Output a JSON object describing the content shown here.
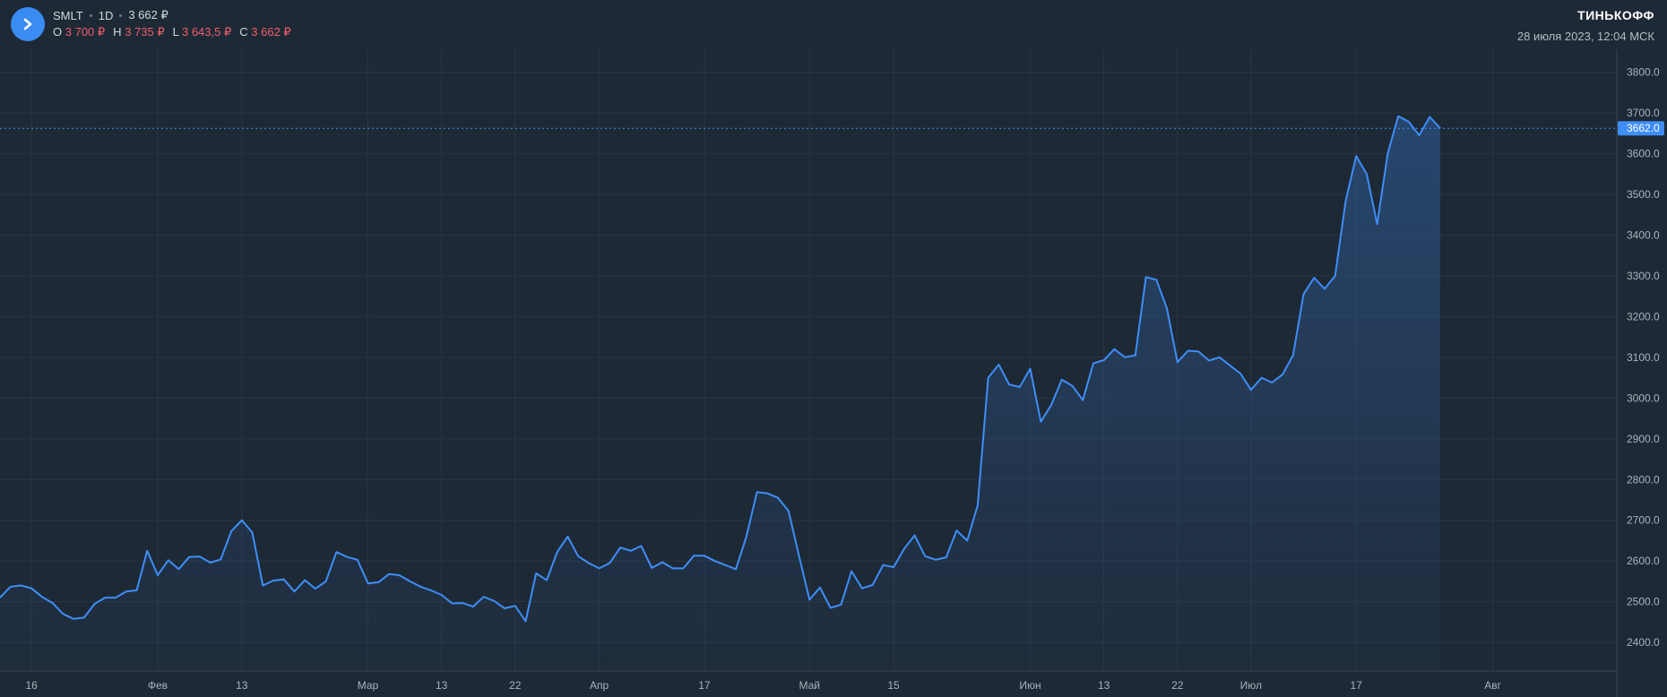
{
  "header": {
    "ticker": "SMLT",
    "interval": "1D",
    "last_price": "3 662 ₽",
    "ohlc": [
      {
        "label": "O",
        "value": "3 700 ₽"
      },
      {
        "label": "H",
        "value": "3 735 ₽"
      },
      {
        "label": "L",
        "value": "3 643,5 ₽"
      },
      {
        "label": "C",
        "value": "3 662 ₽"
      }
    ]
  },
  "brand": {
    "name": "ТИНЬКОФФ",
    "date": "28 июля 2023, 12:04 МСК"
  },
  "colors": {
    "background": "#1e2936",
    "line": "#3e8ef7",
    "negative": "#ef5e6b",
    "price_tag": "#3e8ef7"
  },
  "chart_data": {
    "type": "area",
    "y_ticks": [
      "3800.0",
      "3700.0",
      "3600.0",
      "3500.0",
      "3400.0",
      "3300.0",
      "3200.0",
      "3100.0",
      "3000.0",
      "2900.0",
      "2800.0",
      "2700.0",
      "2600.0",
      "2500.0",
      "2400.0"
    ],
    "ylim": [
      2330,
      3845
    ],
    "x_ticks": [
      {
        "label": "16",
        "idx": 3
      },
      {
        "label": "Фев",
        "idx": 15
      },
      {
        "label": "13",
        "idx": 23
      },
      {
        "label": "Мар",
        "idx": 35
      },
      {
        "label": "13",
        "idx": 42
      },
      {
        "label": "22",
        "idx": 49
      },
      {
        "label": "Апр",
        "idx": 57
      },
      {
        "label": "17",
        "idx": 67
      },
      {
        "label": "Май",
        "idx": 77
      },
      {
        "label": "15",
        "idx": 85
      },
      {
        "label": "Июн",
        "idx": 98
      },
      {
        "label": "13",
        "idx": 105
      },
      {
        "label": "22",
        "idx": 112
      },
      {
        "label": "Июл",
        "idx": 119
      },
      {
        "label": "17",
        "idx": 129
      },
      {
        "label": "Авг",
        "idx": 142
      }
    ],
    "grid": true,
    "current_price_label": "3662.0",
    "current_price": 3662,
    "series": [
      {
        "values": [
          2510,
          2537,
          2540,
          2533,
          2512,
          2497,
          2470,
          2458,
          2461,
          2495,
          2510,
          2510,
          2525,
          2528,
          2625,
          2565,
          2602,
          2580,
          2610,
          2611,
          2596,
          2604,
          2673,
          2700,
          2670,
          2540,
          2552,
          2555,
          2525,
          2553,
          2532,
          2550,
          2622,
          2610,
          2603,
          2545,
          2548,
          2568,
          2565,
          2550,
          2537,
          2528,
          2517,
          2496,
          2497,
          2488,
          2512,
          2502,
          2484,
          2490,
          2452,
          2570,
          2553,
          2622,
          2660,
          2612,
          2595,
          2582,
          2595,
          2633,
          2625,
          2637,
          2583,
          2597,
          2582,
          2582,
          2613,
          2613,
          2600,
          2590,
          2580,
          2660,
          2769,
          2766,
          2755,
          2723,
          2613,
          2505,
          2535,
          2485,
          2493,
          2575,
          2533,
          2541,
          2590,
          2585,
          2630,
          2663,
          2612,
          2603,
          2609,
          2675,
          2650,
          2737,
          3050,
          3082,
          3033,
          3027,
          3072,
          2942,
          2983,
          3045,
          3030,
          2995,
          3085,
          3093,
          3120,
          3100,
          3105,
          3297,
          3290,
          3220,
          3088,
          3116,
          3114,
          3092,
          3100,
          3080,
          3060,
          3020,
          3050,
          3038,
          3058,
          3105,
          3255,
          3295,
          3268,
          3300,
          3483,
          3594,
          3550,
          3427,
          3600,
          3692,
          3678,
          3645,
          3690,
          3662
        ]
      }
    ]
  }
}
